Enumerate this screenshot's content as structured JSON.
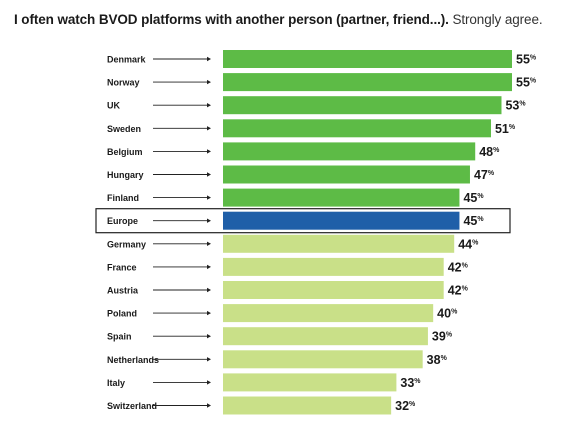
{
  "title_bold": "I often watch BVOD platforms with another person (partner, friend...).",
  "title_normal": "Strongly agree.",
  "colors": {
    "country_bar_above_europe": "#5dbb46",
    "country_bar_below_europe": "#c9e088",
    "europe_bar": "#1f5fa8",
    "highlight_border": "#222222",
    "arrow": "#222222"
  },
  "chart_data": {
    "type": "bar",
    "orientation": "horizontal",
    "value_suffix": "%",
    "highlight": "Europe",
    "categories": [
      "Denmark",
      "Norway",
      "UK",
      "Sweden",
      "Belgium",
      "Hungary",
      "Finland",
      "Europe",
      "Germany",
      "France",
      "Austria",
      "Poland",
      "Spain",
      "Netherlands",
      "Italy",
      "Switzerland"
    ],
    "values": [
      55,
      55,
      53,
      51,
      48,
      47,
      45,
      45,
      44,
      42,
      42,
      40,
      39,
      38,
      33,
      32
    ],
    "xlim": [
      0,
      55
    ],
    "grid": false,
    "legend": "none"
  }
}
